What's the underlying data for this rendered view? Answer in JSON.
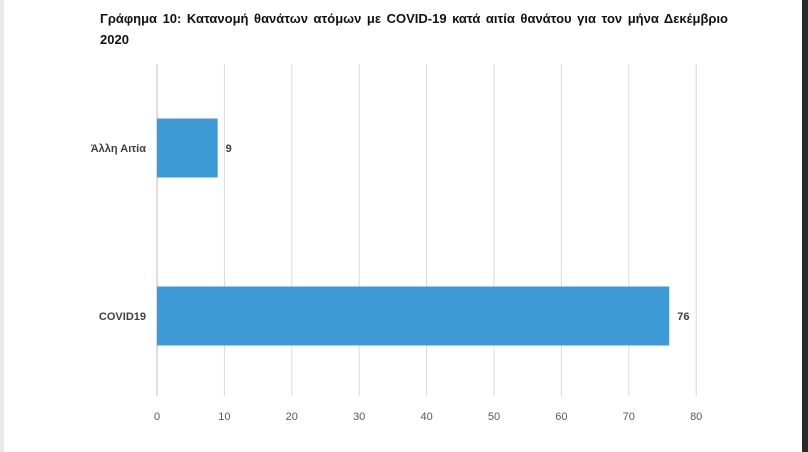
{
  "page": {
    "title": "Γράφημα 10: Κατανομή θανάτων ατόμων με COVID-19 κατά αιτία θανάτου για τον μήνα Δεκέμβριο 2020"
  },
  "colors": {
    "bar": "#3e9ad4",
    "grid": "#d9d9d9",
    "axis": "#bfbfbf"
  },
  "chart_data": {
    "type": "bar",
    "orientation": "horizontal",
    "title": "Γράφημα 10: Κατανομή θανάτων ατόμων με COVID-19 κατά αιτία θανάτου για τον μήνα Δεκέμβριο 2020",
    "categories": [
      "Άλλη Αιτία",
      "COVID19"
    ],
    "values": [
      9,
      76
    ],
    "xlim": [
      0,
      80
    ],
    "x_ticks": [
      0,
      10,
      20,
      30,
      40,
      50,
      60,
      70,
      80
    ],
    "grid": true,
    "legend": "none"
  }
}
